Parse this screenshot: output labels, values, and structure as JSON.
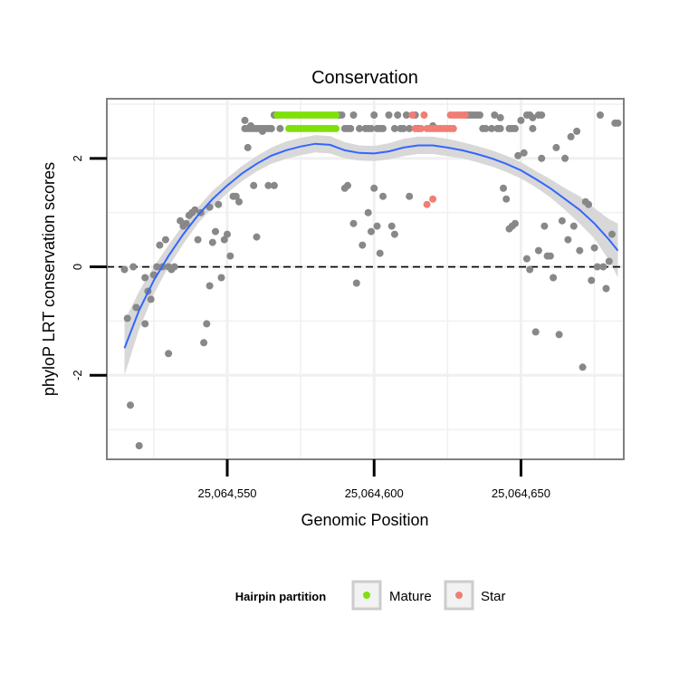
{
  "chart_data": {
    "type": "scatter",
    "title": "Conservation",
    "xlabel": "Genomic Position",
    "ylabel": "phyloP LRT conservation scores",
    "xlim": [
      25064509,
      25064685
    ],
    "ylim": [
      -3.55,
      3.1
    ],
    "x_ticks": [
      25064550,
      25064600,
      25064650
    ],
    "x_tick_labels": [
      "25,064,550",
      "25,064,600",
      "25,064,650"
    ],
    "y_ticks": [
      -2,
      0,
      2
    ],
    "y_tick_labels": [
      "-2",
      "0",
      "2"
    ],
    "hline": 0,
    "grid": true,
    "legend": {
      "title": "Hairpin partition",
      "position": "bottom",
      "entries": [
        {
          "label": "Mature",
          "color": "#7fe00a"
        },
        {
          "label": "Star",
          "color": "#f07e74"
        }
      ]
    },
    "colors": {
      "other": "#888888",
      "mature": "#7fe00a",
      "star": "#f07e74",
      "smooth_line": "#3366ff",
      "smooth_band": "#d4d4d4",
      "panel_border": "#808080"
    },
    "series": [
      {
        "role": "other",
        "x": [
          25064515,
          25064516,
          25064517,
          25064518,
          25064519,
          25064520,
          25064522,
          25064522,
          25064523,
          25064524,
          25064525,
          25064526,
          25064527,
          25064528,
          25064529,
          25064530,
          25064530,
          25064531,
          25064532,
          25064534,
          25064535,
          25064536,
          25064537,
          25064538,
          25064539,
          25064540,
          25064541,
          25064542,
          25064543,
          25064544,
          25064544,
          25064545,
          25064546,
          25064547,
          25064548,
          25064549,
          25064550,
          25064551,
          25064552,
          25064553,
          25064554,
          25064556,
          25064557,
          25064558,
          25064559,
          25064560,
          25064562,
          25064564,
          25064565,
          25064566,
          25064590,
          25064591,
          25064593,
          25064594,
          25064596,
          25064598,
          25064599,
          25064600,
          25064601,
          25064602,
          25064603,
          25064606,
          25064607,
          25064608,
          25064612,
          25064620,
          25064643,
          25064644,
          25064645,
          25064646,
          25064647,
          25064648,
          25064649,
          25064650,
          25064651,
          25064652,
          25064653,
          25064654,
          25064655,
          25064656,
          25064657,
          25064658,
          25064659,
          25064660,
          25064661,
          25064662,
          25064663,
          25064664,
          25064665,
          25064666,
          25064667,
          25064668,
          25064669,
          25064670,
          25064671,
          25064672,
          25064673,
          25064674,
          25064675,
          25064676,
          25064677,
          25064678,
          25064679,
          25064680,
          25064681,
          25064682,
          25064683
        ],
        "y": [
          -0.05,
          -0.95,
          -2.55,
          0.0,
          -0.75,
          -3.3,
          -0.2,
          -1.05,
          -0.45,
          -0.6,
          -0.15,
          0.0,
          0.4,
          0.0,
          0.5,
          -1.6,
          0.0,
          -0.05,
          0.0,
          0.85,
          0.75,
          0.8,
          0.95,
          1.0,
          1.05,
          0.5,
          1.0,
          -1.4,
          -1.05,
          -0.35,
          1.1,
          0.45,
          0.65,
          1.15,
          -0.2,
          0.5,
          0.6,
          0.2,
          1.3,
          1.3,
          1.2,
          2.7,
          2.2,
          2.6,
          1.5,
          0.55,
          2.5,
          1.5,
          2.55,
          1.5,
          1.45,
          1.5,
          0.8,
          -0.3,
          0.4,
          1.0,
          0.65,
          1.45,
          0.75,
          0.25,
          1.3,
          0.75,
          0.6,
          2.8,
          1.3,
          2.6,
          2.75,
          1.45,
          1.25,
          0.7,
          0.75,
          0.8,
          2.05,
          2.7,
          2.1,
          0.15,
          -0.05,
          2.75,
          -1.2,
          0.3,
          2.0,
          0.75,
          0.2,
          0.2,
          -0.2,
          2.2,
          -1.25,
          0.85,
          2.0,
          0.5,
          2.4,
          0.75,
          2.5,
          0.3,
          -1.85,
          1.2,
          1.15,
          -0.25,
          0.35,
          0.0,
          2.8,
          0.0,
          -0.4,
          0.1,
          0.6,
          2.65,
          2.65
        ]
      },
      {
        "role": "other",
        "x": [
          25064556,
          25064557,
          25064558,
          25064559,
          25064560,
          25064561,
          25064562,
          25064563,
          25064564,
          25064565,
          25064566,
          25064567,
          25064568,
          25064588,
          25064589,
          25064590,
          25064591,
          25064592,
          25064593,
          25064595,
          25064597,
          25064598,
          25064599,
          25064600,
          25064601,
          25064602,
          25064603,
          25064605,
          25064607,
          25064609,
          25064610,
          25064611,
          25064612,
          25064614,
          25064615,
          25064631,
          25064632,
          25064633,
          25064634,
          25064635,
          25064636,
          25064637,
          25064638,
          25064640,
          25064641,
          25064642,
          25064643,
          25064646,
          25064647,
          25064648,
          25064652,
          25064653,
          25064654,
          25064656,
          25064657
        ],
        "y": [
          2.55,
          2.55,
          2.55,
          2.55,
          2.55,
          2.55,
          2.55,
          2.55,
          2.55,
          2.55,
          2.8,
          2.8,
          2.55,
          2.8,
          2.8,
          2.55,
          2.55,
          2.55,
          2.8,
          2.55,
          2.55,
          2.55,
          2.55,
          2.8,
          2.55,
          2.55,
          2.55,
          2.8,
          2.55,
          2.55,
          2.55,
          2.8,
          2.55,
          2.8,
          2.55,
          2.8,
          2.8,
          2.8,
          2.8,
          2.8,
          2.8,
          2.55,
          2.55,
          2.55,
          2.8,
          2.55,
          2.55,
          2.55,
          2.55,
          2.55,
          2.8,
          2.8,
          2.55,
          2.8,
          2.8
        ]
      },
      {
        "name": "Mature",
        "role": "mature",
        "x": [
          25064567,
          25064568,
          25064569,
          25064570,
          25064571,
          25064572,
          25064573,
          25064574,
          25064575,
          25064576,
          25064577,
          25064578,
          25064579,
          25064580,
          25064581,
          25064582,
          25064583,
          25064584,
          25064585,
          25064586,
          25064587,
          25064571,
          25064572,
          25064573,
          25064574,
          25064575,
          25064576,
          25064577,
          25064578,
          25064579,
          25064580,
          25064581,
          25064582,
          25064583,
          25064584,
          25064585,
          25064586,
          25064587
        ],
        "y": [
          2.8,
          2.8,
          2.8,
          2.8,
          2.8,
          2.8,
          2.8,
          2.8,
          2.8,
          2.8,
          2.8,
          2.8,
          2.8,
          2.8,
          2.8,
          2.8,
          2.8,
          2.8,
          2.8,
          2.8,
          2.8,
          2.55,
          2.55,
          2.55,
          2.55,
          2.55,
          2.55,
          2.55,
          2.55,
          2.55,
          2.55,
          2.55,
          2.55,
          2.55,
          2.55,
          2.55,
          2.55,
          2.55
        ]
      },
      {
        "name": "Star",
        "role": "star",
        "x": [
          25064613,
          25064614,
          25064616,
          25064617,
          25064618,
          25064619,
          25064620,
          25064621,
          25064622,
          25064623,
          25064624,
          25064625,
          25064626,
          25064627,
          25064626,
          25064627,
          25064628,
          25064629,
          25064630,
          25064631,
          25064618,
          25064620
        ],
        "y": [
          2.8,
          2.55,
          2.55,
          2.8,
          2.55,
          2.55,
          2.55,
          2.55,
          2.55,
          2.55,
          2.55,
          2.55,
          2.55,
          2.55,
          2.8,
          2.8,
          2.8,
          2.8,
          2.8,
          2.8,
          1.15,
          1.25
        ]
      }
    ],
    "smooth": {
      "x": [
        25064515,
        25064520,
        25064525,
        25064530,
        25064535,
        25064540,
        25064545,
        25064550,
        25064555,
        25064560,
        25064565,
        25064570,
        25064575,
        25064580,
        25064585,
        25064590,
        25064595,
        25064600,
        25064605,
        25064610,
        25064615,
        25064620,
        25064625,
        25064630,
        25064635,
        25064640,
        25064645,
        25064650,
        25064655,
        25064660,
        25064665,
        25064670,
        25064675,
        25064680,
        25064683
      ],
      "y": [
        -1.5,
        -0.8,
        -0.25,
        0.2,
        0.6,
        0.95,
        1.25,
        1.5,
        1.72,
        1.9,
        2.05,
        2.15,
        2.22,
        2.27,
        2.25,
        2.15,
        2.1,
        2.09,
        2.13,
        2.2,
        2.24,
        2.24,
        2.2,
        2.15,
        2.08,
        2.0,
        1.9,
        1.78,
        1.62,
        1.45,
        1.25,
        1.05,
        0.8,
        0.5,
        0.3
      ],
      "lower": [
        -2.0,
        -1.15,
        -0.5,
        0.0,
        0.42,
        0.8,
        1.1,
        1.36,
        1.58,
        1.76,
        1.9,
        1.99,
        2.06,
        2.11,
        2.09,
        2.0,
        1.96,
        1.95,
        1.98,
        2.04,
        2.08,
        2.08,
        2.04,
        2.0,
        1.93,
        1.85,
        1.75,
        1.63,
        1.47,
        1.28,
        1.05,
        0.8,
        0.52,
        0.12,
        -0.2
      ],
      "upper": [
        -1.0,
        -0.45,
        0.0,
        0.4,
        0.78,
        1.1,
        1.4,
        1.64,
        1.86,
        2.04,
        2.2,
        2.31,
        2.38,
        2.43,
        2.41,
        2.3,
        2.24,
        2.23,
        2.28,
        2.36,
        2.4,
        2.4,
        2.36,
        2.3,
        2.23,
        2.15,
        2.05,
        1.93,
        1.77,
        1.62,
        1.45,
        1.3,
        1.08,
        0.88,
        0.8
      ]
    }
  }
}
